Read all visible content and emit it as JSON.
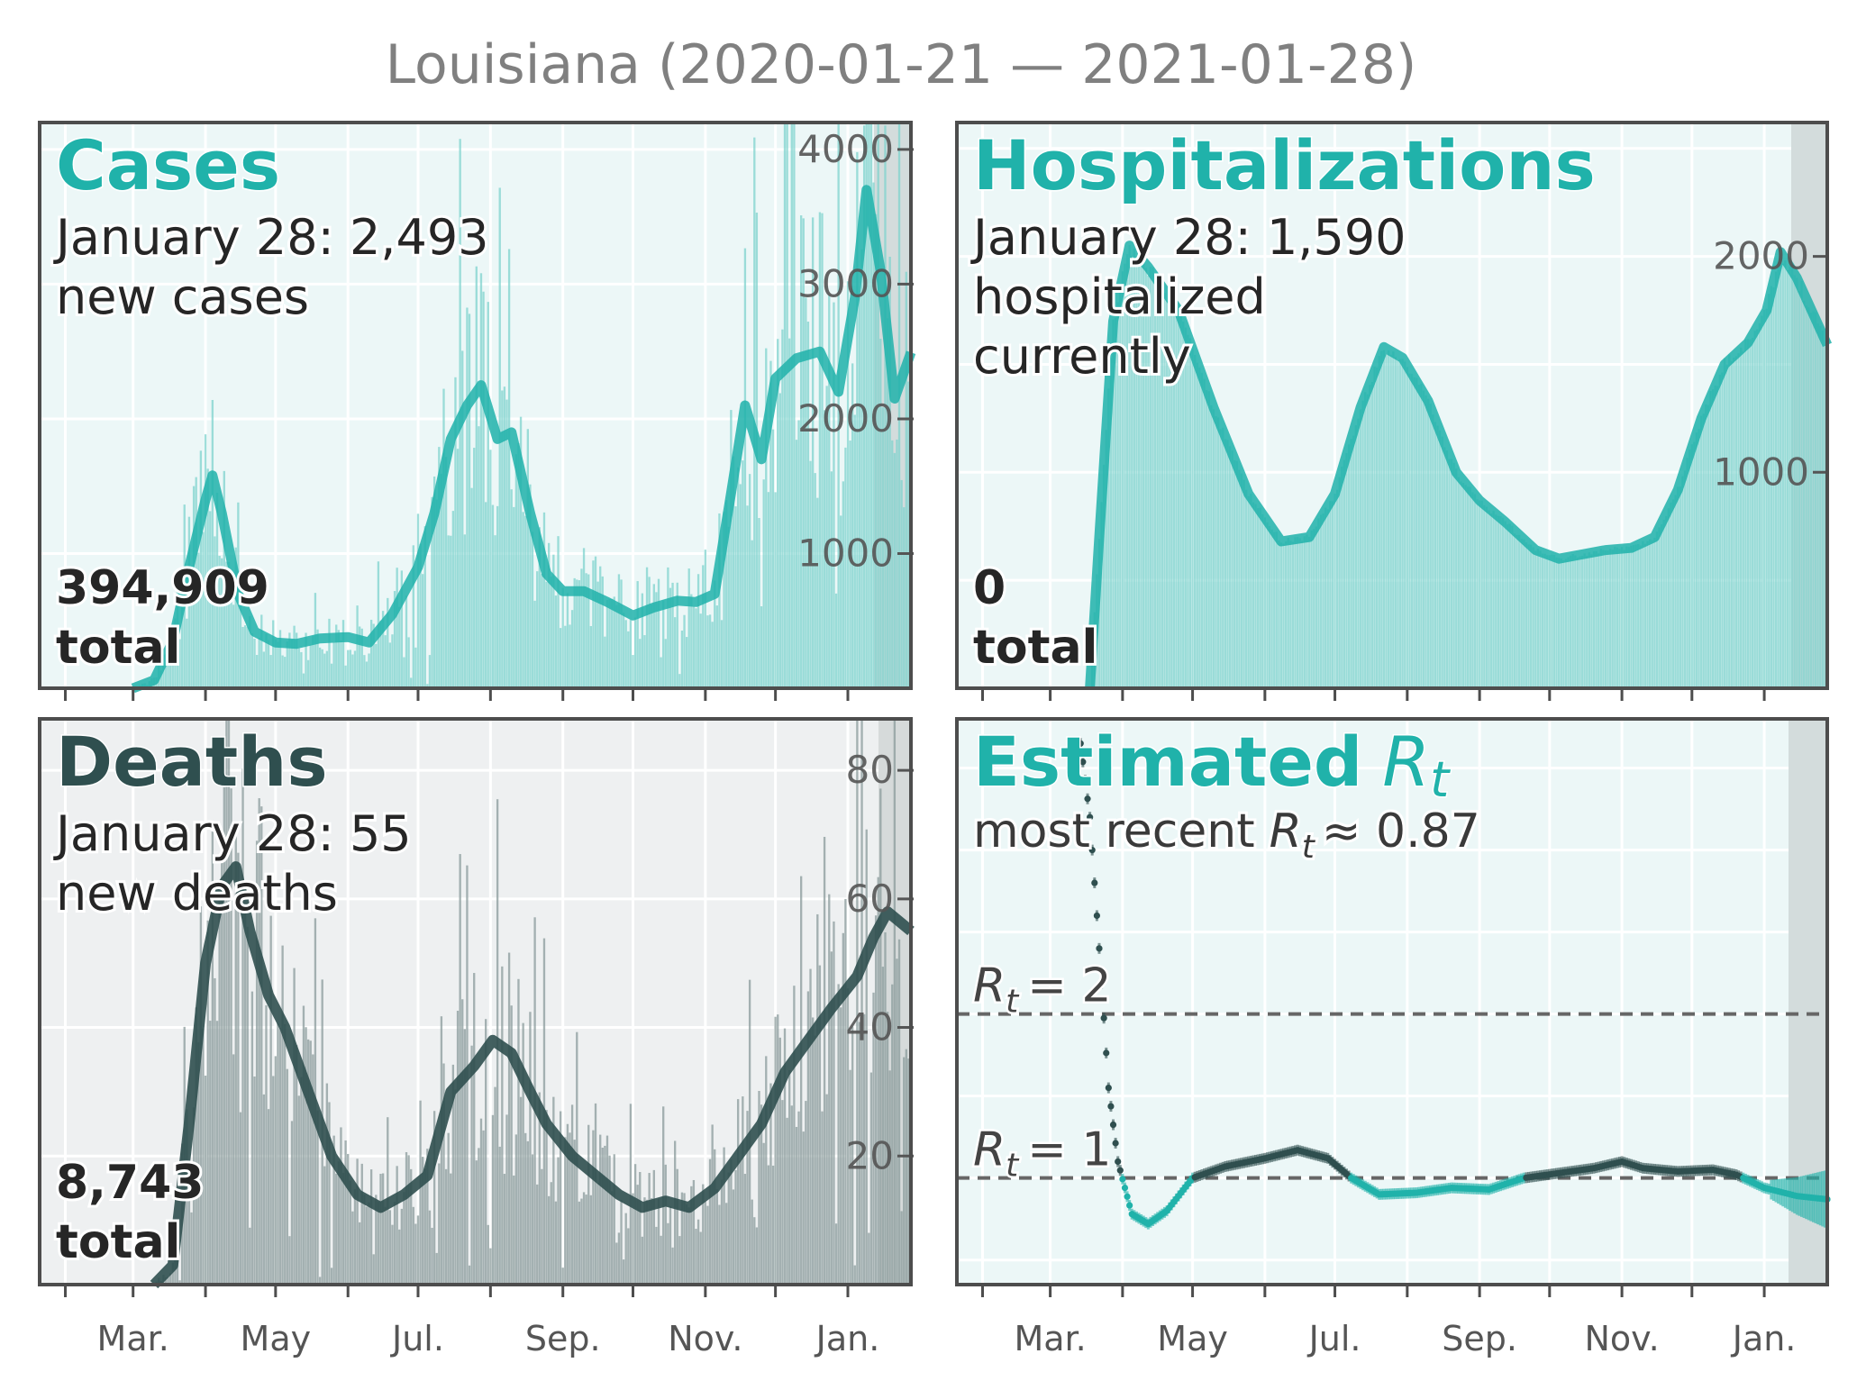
{
  "title": "Louisiana (2020-01-21 — 2021-01-28)",
  "colors": {
    "teal": "#20b2aa",
    "teal_bar": "#7fd3ce",
    "dark": "#2f4f4f",
    "dark_bar": "#8a9b9b",
    "panel_bg_teal": "#ecf7f7",
    "panel_bg_gray": "#eef0f1",
    "gray_band": "#d3dcdc",
    "frame": "#4d4d4d",
    "tick_text": "#555555"
  },
  "month_ticks": [
    "Mar.",
    "May",
    "Jul.",
    "Sep.",
    "Nov.",
    "Jan."
  ],
  "panels": {
    "cases": {
      "heading": "Cases",
      "line1": "January 28: 2,493",
      "line2": "new cases",
      "total_value": "394,909",
      "total_label": "total"
    },
    "hospitalizations": {
      "heading": "Hospitalizations",
      "line1": "January 28: 1,590",
      "line2": "hospitalized",
      "line3": "currently",
      "total_value": "0",
      "total_label": "total"
    },
    "deaths": {
      "heading": "Deaths",
      "line1": "January 28: 55",
      "line2": "new deaths",
      "total_value": "8,743",
      "total_label": "total"
    },
    "rt": {
      "heading": "Estimated",
      "heading_symbol": "R",
      "heading_sub": "t",
      "recent_prefix": "most recent",
      "recent_symbol": "R",
      "recent_sub": "t",
      "recent_value": "≈ 0.87",
      "ref2_symbol": "R",
      "ref2_sub": "t",
      "ref2_value": "= 2",
      "ref1_symbol": "R",
      "ref1_sub": "t",
      "ref1_value": "= 1"
    }
  },
  "chart_data": [
    {
      "type": "bar",
      "name": "cases",
      "x_range": [
        "2020-01-21",
        "2021-01-28"
      ],
      "ylim": [
        0,
        4200
      ],
      "yticks": [
        1000,
        2000,
        3000,
        4000
      ],
      "smoothed": [
        [
          "2020-03-01",
          0
        ],
        [
          "2020-03-10",
          60
        ],
        [
          "2020-03-18",
          350
        ],
        [
          "2020-03-25",
          900
        ],
        [
          "2020-04-01",
          1400
        ],
        [
          "2020-04-04",
          1580
        ],
        [
          "2020-04-08",
          1300
        ],
        [
          "2020-04-15",
          700
        ],
        [
          "2020-04-22",
          420
        ],
        [
          "2020-05-01",
          340
        ],
        [
          "2020-05-10",
          330
        ],
        [
          "2020-05-20",
          370
        ],
        [
          "2020-06-01",
          380
        ],
        [
          "2020-06-10",
          340
        ],
        [
          "2020-06-20",
          550
        ],
        [
          "2020-07-01",
          900
        ],
        [
          "2020-07-08",
          1300
        ],
        [
          "2020-07-15",
          1850
        ],
        [
          "2020-07-22",
          2100
        ],
        [
          "2020-07-28",
          2250
        ],
        [
          "2020-08-04",
          1850
        ],
        [
          "2020-08-10",
          1900
        ],
        [
          "2020-08-18",
          1300
        ],
        [
          "2020-08-25",
          850
        ],
        [
          "2020-09-01",
          720
        ],
        [
          "2020-09-10",
          720
        ],
        [
          "2020-09-20",
          640
        ],
        [
          "2020-10-01",
          540
        ],
        [
          "2020-10-10",
          600
        ],
        [
          "2020-10-20",
          650
        ],
        [
          "2020-10-28",
          640
        ],
        [
          "2020-11-05",
          700
        ],
        [
          "2020-11-12",
          1450
        ],
        [
          "2020-11-18",
          2100
        ],
        [
          "2020-11-25",
          1700
        ],
        [
          "2020-12-01",
          2300
        ],
        [
          "2020-12-10",
          2450
        ],
        [
          "2020-12-20",
          2500
        ],
        [
          "2020-12-28",
          2200
        ],
        [
          "2021-01-04",
          2900
        ],
        [
          "2021-01-09",
          3700
        ],
        [
          "2021-01-15",
          3100
        ],
        [
          "2021-01-21",
          2150
        ],
        [
          "2021-01-28",
          2493
        ]
      ]
    },
    {
      "type": "bar",
      "name": "hospitalizations",
      "x_range": [
        "2020-01-21",
        "2021-01-28"
      ],
      "ylim": [
        0,
        2620
      ],
      "yticks": [
        1000,
        2000
      ],
      "smoothed": [
        [
          "2020-03-18",
          0
        ],
        [
          "2020-03-22",
          700
        ],
        [
          "2020-03-28",
          1700
        ],
        [
          "2020-04-04",
          2050
        ],
        [
          "2020-04-12",
          1950
        ],
        [
          "2020-04-25",
          1750
        ],
        [
          "2020-05-10",
          1300
        ],
        [
          "2020-05-25",
          900
        ],
        [
          "2020-06-08",
          680
        ],
        [
          "2020-06-20",
          700
        ],
        [
          "2020-07-01",
          900
        ],
        [
          "2020-07-12",
          1300
        ],
        [
          "2020-07-22",
          1580
        ],
        [
          "2020-07-30",
          1530
        ],
        [
          "2020-08-10",
          1330
        ],
        [
          "2020-08-22",
          1000
        ],
        [
          "2020-09-01",
          870
        ],
        [
          "2020-09-12",
          770
        ],
        [
          "2020-09-25",
          640
        ],
        [
          "2020-10-05",
          600
        ],
        [
          "2020-10-15",
          620
        ],
        [
          "2020-10-25",
          640
        ],
        [
          "2020-11-05",
          650
        ],
        [
          "2020-11-15",
          700
        ],
        [
          "2020-11-25",
          920
        ],
        [
          "2020-12-05",
          1250
        ],
        [
          "2020-12-15",
          1500
        ],
        [
          "2020-12-25",
          1600
        ],
        [
          "2021-01-02",
          1750
        ],
        [
          "2021-01-08",
          2020
        ],
        [
          "2021-01-15",
          1900
        ],
        [
          "2021-01-28",
          1590
        ]
      ]
    },
    {
      "type": "bar",
      "name": "deaths",
      "x_range": [
        "2020-01-21",
        "2021-01-28"
      ],
      "ylim": [
        0,
        88
      ],
      "yticks": [
        20,
        40,
        60,
        80
      ],
      "smoothed": [
        [
          "2020-03-10",
          0
        ],
        [
          "2020-03-18",
          3
        ],
        [
          "2020-03-25",
          25
        ],
        [
          "2020-04-01",
          50
        ],
        [
          "2020-04-08",
          62
        ],
        [
          "2020-04-14",
          65
        ],
        [
          "2020-04-20",
          55
        ],
        [
          "2020-04-28",
          45
        ],
        [
          "2020-05-05",
          40
        ],
        [
          "2020-05-15",
          30
        ],
        [
          "2020-05-25",
          20
        ],
        [
          "2020-06-05",
          14
        ],
        [
          "2020-06-15",
          12
        ],
        [
          "2020-06-25",
          14
        ],
        [
          "2020-07-05",
          17
        ],
        [
          "2020-07-15",
          30
        ],
        [
          "2020-07-25",
          34
        ],
        [
          "2020-08-02",
          38
        ],
        [
          "2020-08-10",
          36
        ],
        [
          "2020-08-18",
          30
        ],
        [
          "2020-08-25",
          25
        ],
        [
          "2020-09-05",
          20
        ],
        [
          "2020-09-15",
          17
        ],
        [
          "2020-09-25",
          14
        ],
        [
          "2020-10-05",
          12
        ],
        [
          "2020-10-15",
          13
        ],
        [
          "2020-10-25",
          12
        ],
        [
          "2020-11-05",
          15
        ],
        [
          "2020-11-15",
          20
        ],
        [
          "2020-11-25",
          25
        ],
        [
          "2020-12-05",
          33
        ],
        [
          "2020-12-15",
          38
        ],
        [
          "2020-12-25",
          43
        ],
        [
          "2021-01-05",
          48
        ],
        [
          "2021-01-12",
          54
        ],
        [
          "2021-01-18",
          58
        ],
        [
          "2021-01-28",
          55
        ]
      ]
    },
    {
      "type": "line",
      "name": "rt",
      "x_range": [
        "2020-01-21",
        "2021-01-28"
      ],
      "ylim": [
        0.35,
        3.8
      ],
      "reference_lines": [
        1,
        2
      ],
      "series": [
        [
          "2020-03-14",
          3.65
        ],
        [
          "2020-03-18",
          3.2
        ],
        [
          "2020-03-22",
          2.4
        ],
        [
          "2020-03-26",
          1.55
        ],
        [
          "2020-03-30",
          1.1
        ],
        [
          "2020-04-05",
          0.78
        ],
        [
          "2020-04-12",
          0.72
        ],
        [
          "2020-04-20",
          0.8
        ],
        [
          "2020-05-01",
          1.0
        ],
        [
          "2020-05-15",
          1.07
        ],
        [
          "2020-06-01",
          1.12
        ],
        [
          "2020-06-15",
          1.17
        ],
        [
          "2020-06-28",
          1.12
        ],
        [
          "2020-07-08",
          1.0
        ],
        [
          "2020-07-20",
          0.9
        ],
        [
          "2020-08-05",
          0.91
        ],
        [
          "2020-08-20",
          0.94
        ],
        [
          "2020-09-05",
          0.93
        ],
        [
          "2020-09-20",
          1.0
        ],
        [
          "2020-10-05",
          1.03
        ],
        [
          "2020-10-20",
          1.06
        ],
        [
          "2020-11-01",
          1.1
        ],
        [
          "2020-11-10",
          1.06
        ],
        [
          "2020-11-25",
          1.04
        ],
        [
          "2020-12-10",
          1.05
        ],
        [
          "2020-12-20",
          1.02
        ],
        [
          "2021-01-01",
          0.94
        ],
        [
          "2021-01-15",
          0.89
        ],
        [
          "2021-01-28",
          0.87
        ]
      ]
    }
  ]
}
